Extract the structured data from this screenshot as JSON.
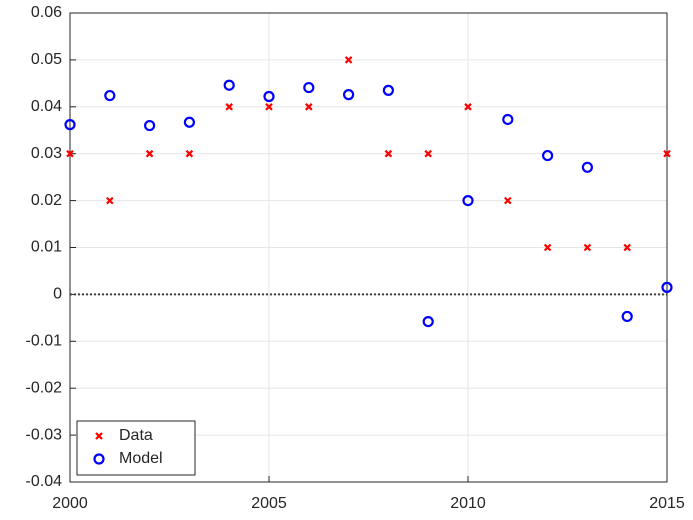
{
  "chart_data": {
    "type": "scatter",
    "x": [
      2000,
      2001,
      2002,
      2003,
      2004,
      2005,
      2006,
      2007,
      2008,
      2009,
      2010,
      2011,
      2012,
      2013,
      2014,
      2015
    ],
    "series": [
      {
        "name": "Data",
        "color": "#ff0000",
        "marker": "x",
        "values": [
          0.03,
          0.02,
          0.03,
          0.03,
          0.04,
          0.04,
          0.04,
          0.05,
          0.03,
          0.03,
          0.04,
          0.02,
          0.01,
          0.01,
          0.01,
          0.03
        ]
      },
      {
        "name": "Model",
        "color": "#0000ff",
        "marker": "o",
        "values": [
          0.0362,
          0.0424,
          0.036,
          0.0367,
          0.0446,
          0.0422,
          0.0441,
          0.0426,
          0.0435,
          -0.0058,
          0.02,
          0.0373,
          0.0296,
          0.0271,
          -0.0047,
          0.0015
        ]
      }
    ],
    "xlim": [
      2000,
      2015
    ],
    "xticks": [
      2000,
      2005,
      2010,
      2015
    ],
    "ylim": [
      -0.04,
      0.06
    ],
    "yticks": [
      -0.04,
      -0.03,
      -0.02,
      -0.01,
      0,
      0.01,
      0.02,
      0.03,
      0.04,
      0.05,
      0.06
    ],
    "reference_line": 0,
    "grid": true,
    "legend": "bottom-left"
  }
}
